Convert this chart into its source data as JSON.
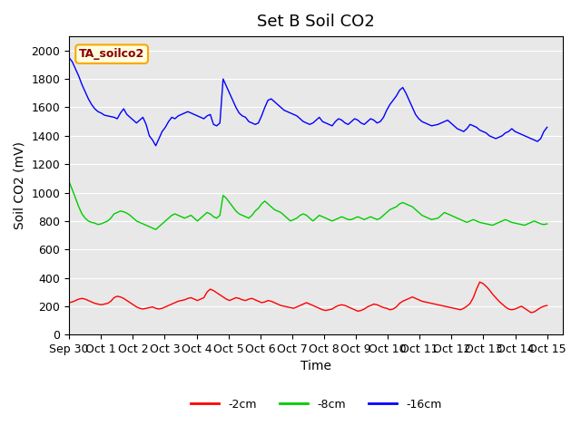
{
  "title": "Set B Soil CO2",
  "ylabel": "Soil CO2 (mV)",
  "xlabel": "Time",
  "annotation": "TA_soilco2",
  "xlim_days": [
    0,
    15.5
  ],
  "ylim": [
    0,
    2100
  ],
  "yticks": [
    0,
    200,
    400,
    600,
    800,
    1000,
    1200,
    1400,
    1600,
    1800,
    2000
  ],
  "xtick_labels": [
    "Sep 30",
    "Oct 1",
    "Oct 2",
    "Oct 3",
    "Oct 4",
    "Oct 5",
    "Oct 6",
    "Oct 7",
    "Oct 8",
    "Oct 9",
    "Oct 10",
    "Oct 11",
    "Oct 12",
    "Oct 13",
    "Oct 14",
    "Oct 15"
  ],
  "xtick_positions": [
    0,
    1,
    2,
    3,
    4,
    5,
    6,
    7,
    8,
    9,
    10,
    11,
    12,
    13,
    14,
    15
  ],
  "legend_labels": [
    "-2cm",
    "-8cm",
    "-16cm"
  ],
  "legend_colors": [
    "#ff0000",
    "#00cc00",
    "#0000ff"
  ],
  "bg_color": "#e8e8e8",
  "title_fontsize": 13,
  "axis_label_fontsize": 10,
  "tick_fontsize": 9,
  "blue_y": [
    1950,
    1920,
    1870,
    1820,
    1760,
    1710,
    1660,
    1620,
    1590,
    1570,
    1560,
    1545,
    1540,
    1535,
    1530,
    1520,
    1560,
    1590,
    1550,
    1530,
    1510,
    1490,
    1510,
    1530,
    1480,
    1400,
    1370,
    1330,
    1380,
    1430,
    1460,
    1500,
    1530,
    1520,
    1540,
    1550,
    1560,
    1570,
    1560,
    1550,
    1540,
    1530,
    1520,
    1540,
    1550,
    1480,
    1470,
    1490,
    1800,
    1750,
    1700,
    1650,
    1600,
    1560,
    1540,
    1530,
    1500,
    1490,
    1480,
    1490,
    1540,
    1600,
    1650,
    1660,
    1640,
    1620,
    1600,
    1580,
    1570,
    1560,
    1550,
    1540,
    1520,
    1500,
    1490,
    1480,
    1490,
    1510,
    1530,
    1500,
    1490,
    1480,
    1470,
    1500,
    1520,
    1510,
    1490,
    1480,
    1500,
    1520,
    1510,
    1490,
    1480,
    1500,
    1520,
    1510,
    1490,
    1500,
    1530,
    1580,
    1620,
    1650,
    1680,
    1720,
    1740,
    1700,
    1650,
    1600,
    1550,
    1520,
    1500,
    1490,
    1480,
    1470,
    1475,
    1480,
    1490,
    1500,
    1510,
    1490,
    1470,
    1450,
    1440,
    1430,
    1450,
    1480,
    1470,
    1460,
    1440,
    1430,
    1420,
    1400,
    1390,
    1380,
    1390,
    1400,
    1420,
    1430,
    1450,
    1430,
    1420,
    1410,
    1400,
    1390,
    1380,
    1370,
    1360,
    1380,
    1430,
    1460
  ],
  "green_y": [
    1075,
    1020,
    960,
    900,
    850,
    820,
    800,
    790,
    785,
    775,
    780,
    790,
    800,
    820,
    850,
    860,
    870,
    865,
    855,
    840,
    820,
    800,
    790,
    780,
    770,
    760,
    750,
    740,
    760,
    780,
    800,
    820,
    840,
    850,
    840,
    830,
    820,
    830,
    840,
    820,
    800,
    820,
    840,
    860,
    850,
    830,
    820,
    840,
    980,
    960,
    930,
    900,
    870,
    850,
    840,
    830,
    820,
    840,
    870,
    890,
    920,
    940,
    920,
    900,
    880,
    870,
    860,
    840,
    820,
    800,
    810,
    820,
    840,
    850,
    840,
    820,
    800,
    820,
    840,
    830,
    820,
    810,
    800,
    810,
    820,
    830,
    820,
    810,
    810,
    820,
    830,
    820,
    810,
    820,
    830,
    820,
    810,
    820,
    840,
    860,
    880,
    890,
    900,
    920,
    930,
    920,
    910,
    900,
    880,
    860,
    840,
    830,
    820,
    810,
    815,
    820,
    840,
    860,
    850,
    840,
    830,
    820,
    810,
    800,
    790,
    800,
    810,
    800,
    790,
    785,
    780,
    775,
    770,
    780,
    790,
    800,
    810,
    800,
    790,
    785,
    780,
    775,
    770,
    780,
    790,
    800,
    790,
    780,
    775,
    780
  ],
  "red_y": [
    225,
    230,
    240,
    250,
    255,
    250,
    240,
    230,
    220,
    215,
    210,
    215,
    220,
    235,
    260,
    270,
    265,
    255,
    240,
    225,
    210,
    195,
    185,
    180,
    185,
    190,
    195,
    185,
    180,
    185,
    195,
    205,
    215,
    225,
    235,
    240,
    245,
    255,
    260,
    250,
    240,
    250,
    260,
    300,
    320,
    310,
    295,
    280,
    265,
    250,
    240,
    250,
    260,
    255,
    245,
    240,
    250,
    255,
    245,
    235,
    225,
    230,
    240,
    235,
    225,
    215,
    205,
    200,
    195,
    190,
    185,
    195,
    205,
    215,
    225,
    215,
    205,
    195,
    185,
    175,
    170,
    175,
    180,
    195,
    205,
    210,
    205,
    195,
    185,
    175,
    165,
    170,
    180,
    195,
    205,
    215,
    210,
    200,
    190,
    185,
    175,
    180,
    195,
    220,
    235,
    245,
    255,
    265,
    255,
    245,
    235,
    230,
    225,
    220,
    215,
    210,
    205,
    200,
    195,
    190,
    185,
    180,
    175,
    185,
    200,
    220,
    260,
    320,
    370,
    360,
    340,
    315,
    285,
    260,
    235,
    215,
    195,
    180,
    175,
    180,
    190,
    200,
    185,
    170,
    155,
    160,
    175,
    190,
    200,
    205
  ]
}
